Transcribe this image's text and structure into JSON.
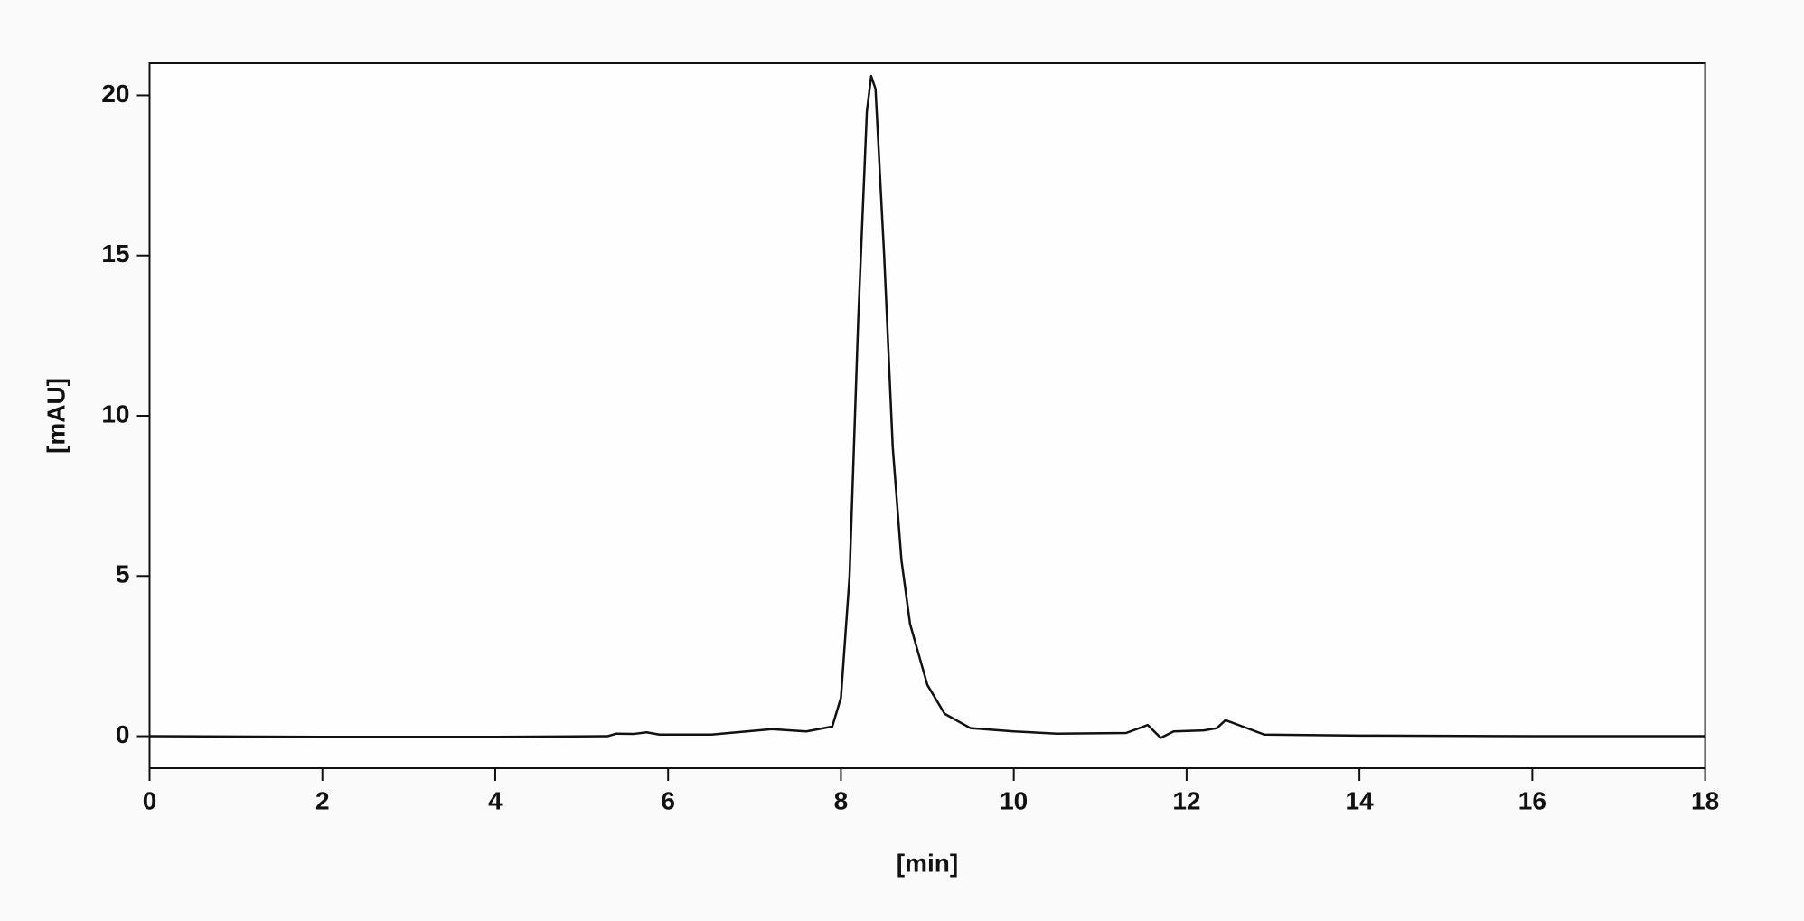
{
  "chart_data": {
    "type": "line",
    "x_label": "[min]",
    "y_label": "[mAU]",
    "x": [
      0,
      2,
      4,
      5.3,
      5.4,
      5.6,
      5.75,
      5.9,
      6.5,
      7.2,
      7.6,
      7.9,
      8.0,
      8.1,
      8.2,
      8.3,
      8.35,
      8.4,
      8.5,
      8.6,
      8.7,
      8.8,
      9.0,
      9.2,
      9.5,
      10,
      10.5,
      11.3,
      11.5,
      11.55,
      11.7,
      11.85,
      12.2,
      12.35,
      12.45,
      12.6,
      12.9,
      14,
      16,
      18
    ],
    "series": [
      {
        "color": "#111111",
        "values": [
          0,
          -0.02,
          -0.02,
          0,
          0.08,
          0.07,
          0.12,
          0.05,
          0.05,
          0.22,
          0.15,
          0.3,
          1.2,
          5,
          13,
          19.5,
          20.6,
          20.2,
          15,
          9,
          5.5,
          3.5,
          1.6,
          0.7,
          0.25,
          0.15,
          0.08,
          0.1,
          0.3,
          0.35,
          -0.05,
          0.15,
          0.18,
          0.25,
          0.5,
          0.35,
          0.05,
          0.02,
          0,
          0
        ]
      }
    ],
    "xlim": [
      0,
      18
    ],
    "xticks": [
      0,
      2,
      4,
      6,
      8,
      10,
      12,
      14,
      16,
      18
    ],
    "ylim": [
      -1,
      21
    ],
    "yticks": [
      0,
      5,
      10,
      15,
      20
    ],
    "grid": false
  }
}
